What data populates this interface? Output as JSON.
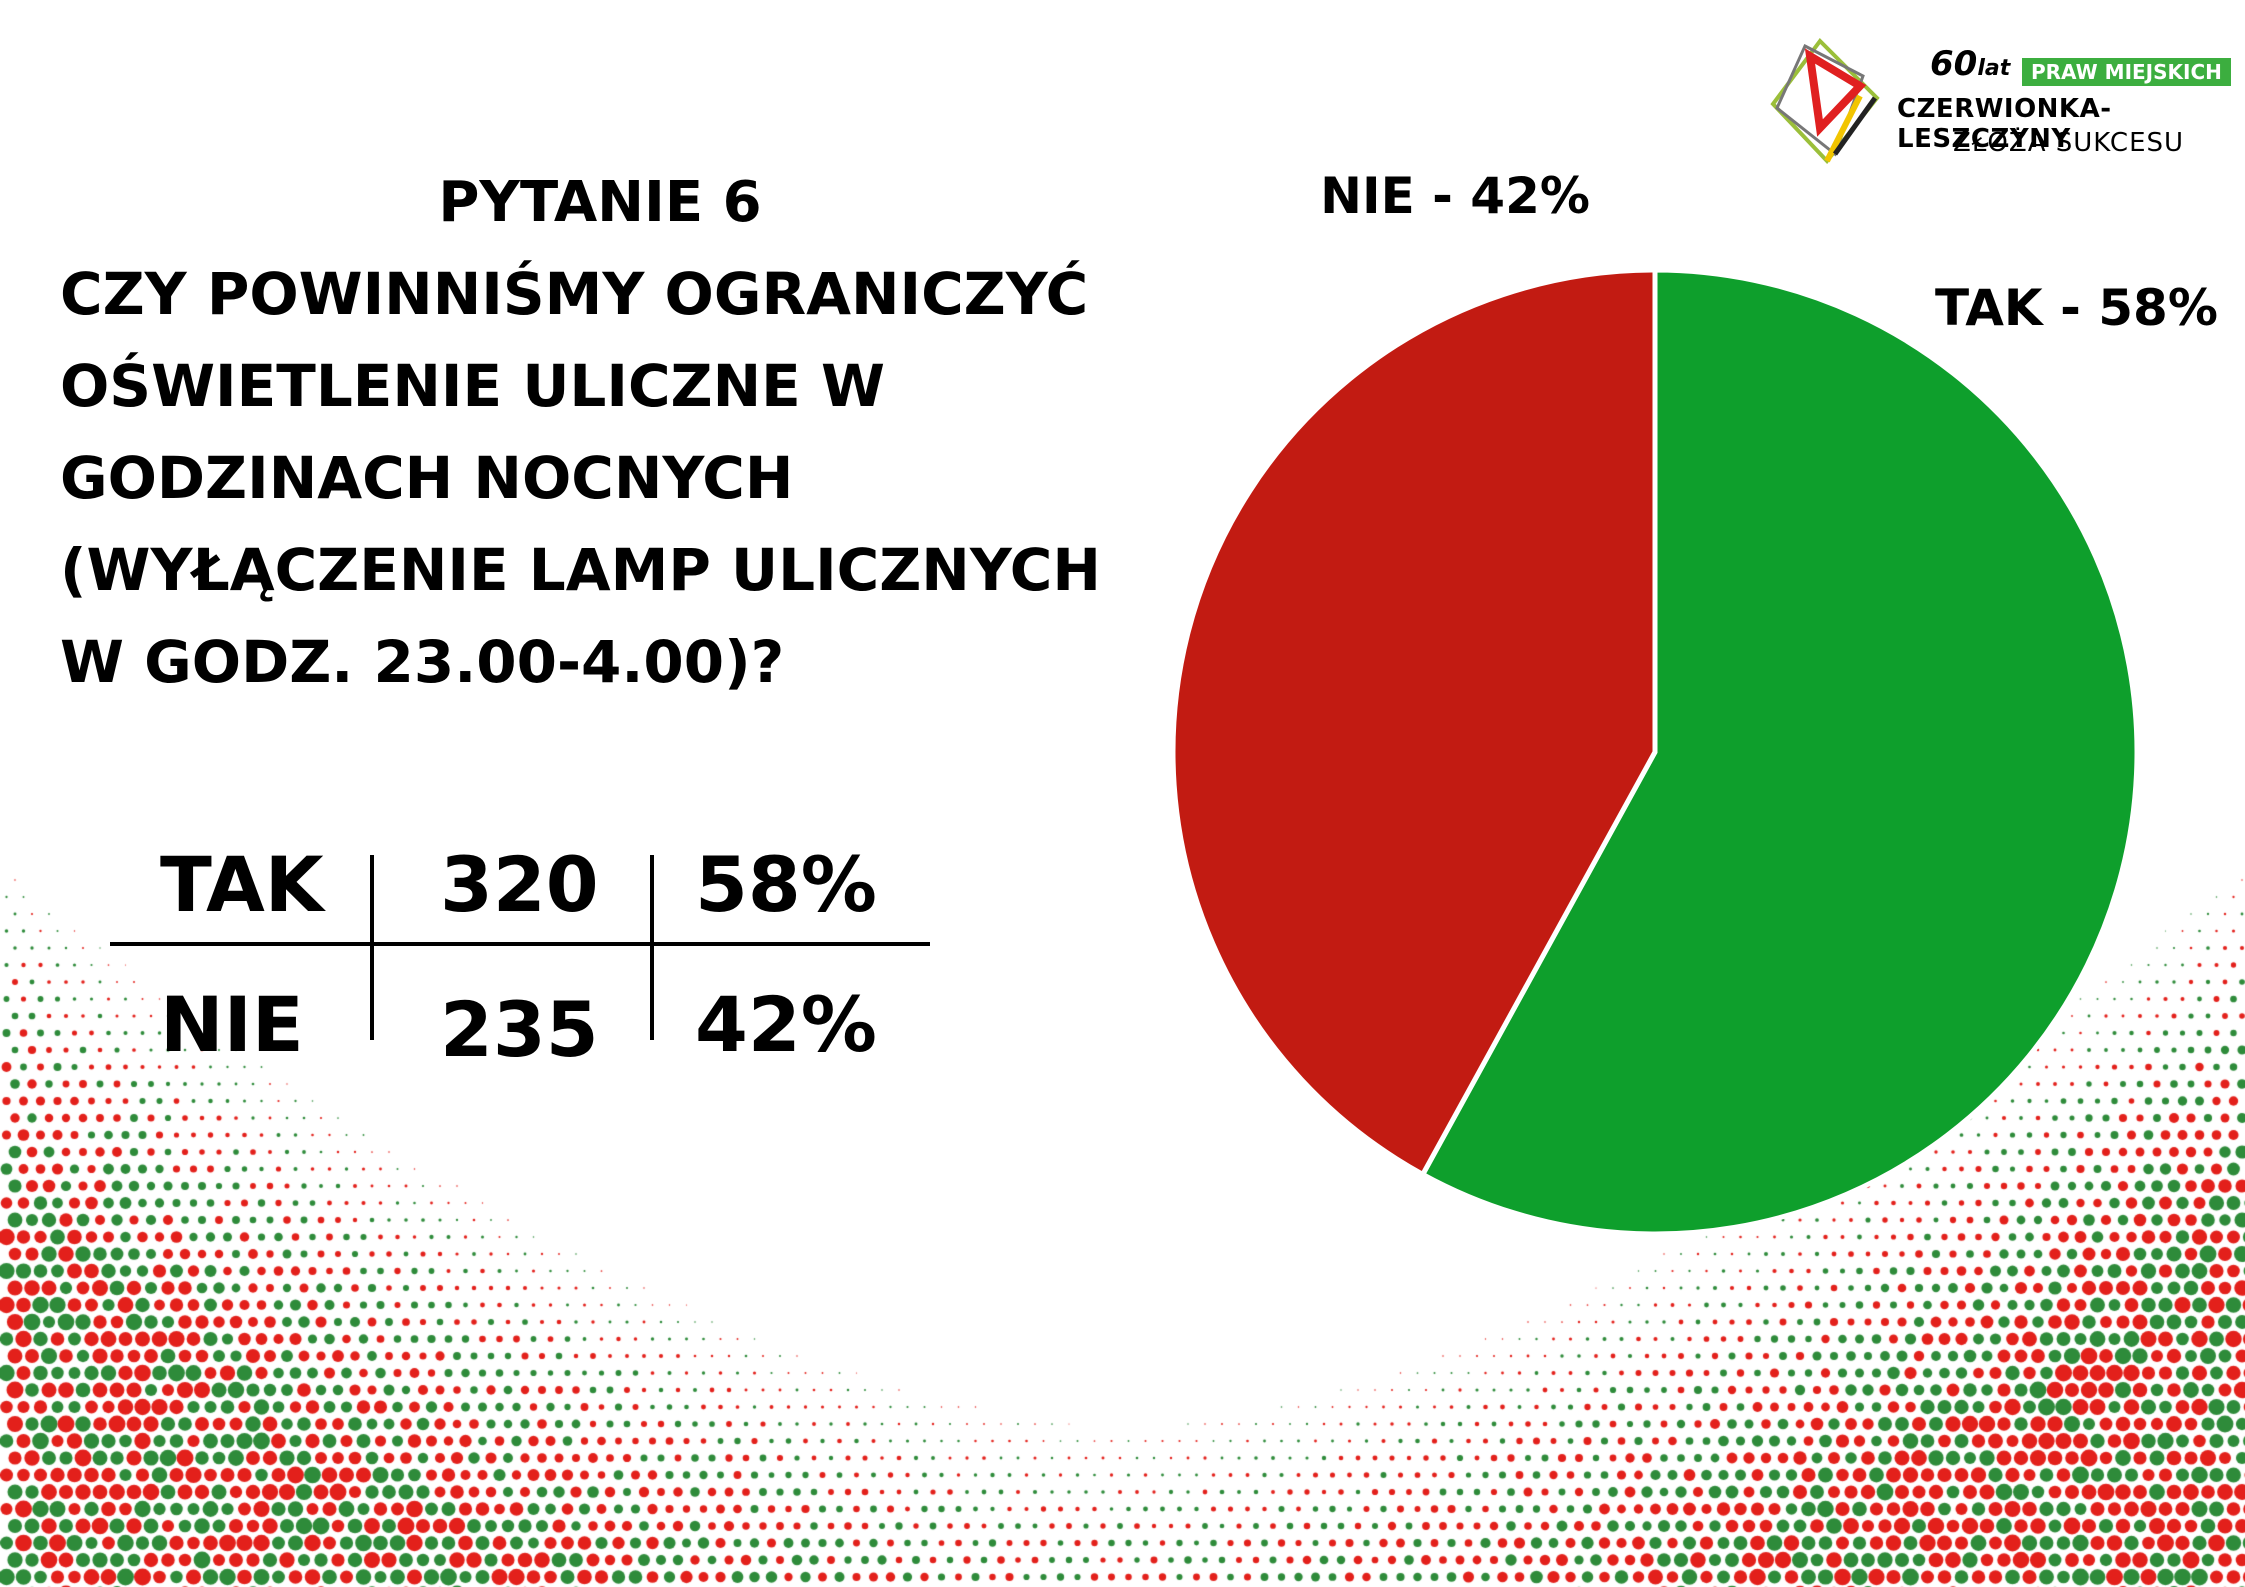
{
  "question": {
    "number": "PYTANIE 6",
    "text": "CZY POWINNIŚMY OGRANICZYĆ OŚWIETLENIE ULICZNE W GODZINACH NOCNYCH (WYŁĄCZENIE LAMP ULICZNYCH W GODZ. 23.00-4.00)?"
  },
  "table": {
    "rows": [
      {
        "answer": "TAK",
        "count": "320",
        "percent": "58%"
      },
      {
        "answer": "NIE",
        "count": "235",
        "percent": "42%"
      }
    ]
  },
  "logo": {
    "years_number": "60",
    "years_word": "lat",
    "badge": "PRAW MIEJSKICH",
    "city": "CZERWIONKA-LESZCZYNY",
    "slogan": "ZŁOŻA SUKCESU"
  },
  "chart_data": {
    "type": "pie",
    "title": "",
    "slices": [
      {
        "name": "TAK",
        "value": 58,
        "label": "TAK - 58%",
        "color": "#0e9f2c"
      },
      {
        "name": "NIE",
        "value": 42,
        "label": "NIE - 42%",
        "color": "#c21b12"
      }
    ],
    "start_angle_deg": 0,
    "direction": "clockwise"
  },
  "colors": {
    "dot_red": "#e3201b",
    "dot_green": "#2e8b3a",
    "logo_green": "#3cae3f"
  }
}
